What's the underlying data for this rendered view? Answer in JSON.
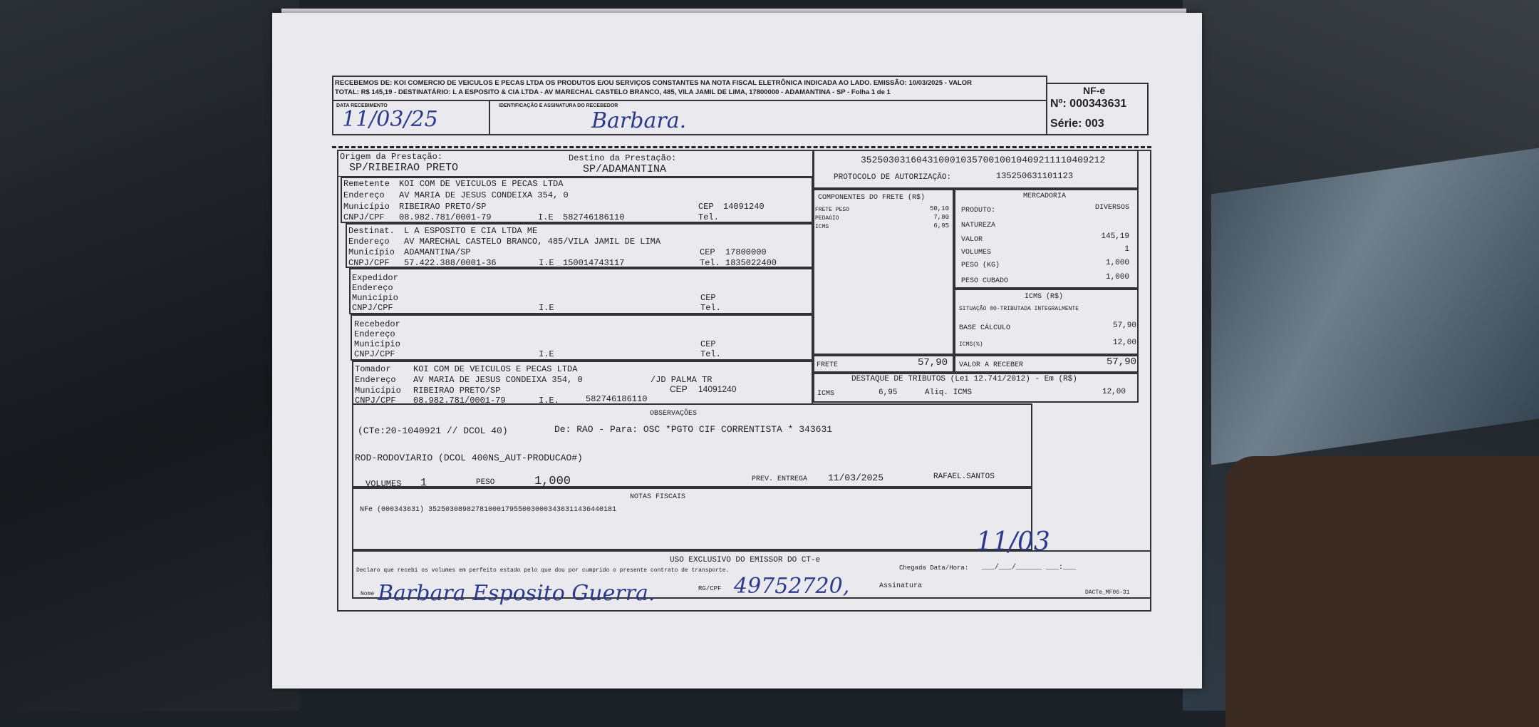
{
  "receipt": {
    "text_line1": "RECEBEMOS DE: KOI COMERCIO DE VEICULOS E PECAS LTDA OS PRODUTOS E/OU SERVIÇOS CONSTANTES NA NOTA FISCAL ELETRÔNICA INDICADA AO LADO. EMISSÃO: 10/03/2025 - VALOR",
    "text_line2": "TOTAL: R$ 145,19 - DESTINATÁRIO: L A  ESPOSITO & CIA LTDA - AV  MARECHAL CASTELO BRANCO, 485, VILA JAMIL DE LIMA, 17800000 - ADAMANTINA - SP - Folha 1 de 1",
    "data_label": "DATA RECEBIMENTO",
    "data_value": "11/03/25",
    "assinatura_label": "IDENTIFICAÇÃO E ASSINATURA DO RECEBEDOR",
    "assinatura_value": "Barbara.",
    "nfe_title": "NF-e",
    "nfe_number": "Nº: 000343631",
    "nfe_serie": "Série: 003"
  },
  "route": {
    "origem_label": "Origem da Prestação:",
    "origem": "SP/RIBEIRAO PRETO",
    "destino_label": "Destino da Prestação:",
    "destino": "SP/ADAMANTINA"
  },
  "chave": "35250303160431000103570010010409211110409212",
  "protocolo_label": "PROTOCOLO DE AUTORIZAÇÃO:",
  "protocolo": "135250631101123",
  "labels": {
    "endereco": "Endereço",
    "municipio": "Município",
    "cnpj": "CNPJ/CPF",
    "ie": "I.E",
    "ie2": "I.E.",
    "cep": "CEP",
    "tel": "Tel."
  },
  "remetente": {
    "label": "Remetente",
    "nome": "KOI COM DE VEICULOS E PECAS LTDA",
    "endereco": "AV MARIA DE JESUS CONDEIXA  354, 0",
    "municipio": "RIBEIRAO PRETO/SP",
    "cep": "14091240",
    "cnpj": "08.982.781/0001-79",
    "ie": "582746186110",
    "tel": ""
  },
  "destinatario": {
    "label": "Destinat.",
    "nome": "L A ESPOSITO E CIA LTDA ME",
    "endereco": "AV MARECHAL CASTELO BRANCO, 485/VILA JAMIL DE LIMA",
    "municipio": "ADAMANTINA/SP",
    "cep": "17800000",
    "cnpj": "57.422.388/0001-36",
    "ie": "150014743117",
    "tel": "1835022400"
  },
  "expedidor": {
    "label": "Expedidor"
  },
  "recebedor": {
    "label": "Recebedor"
  },
  "tomador": {
    "label": "Tomador",
    "nome": "KOI COM DE VEICULOS E PECAS LTDA",
    "endereco": "AV MARIA DE JESUS CONDEIXA  354, 0",
    "bairro": "/JD PALMA TR",
    "municipio": "RIBEIRAO PRETO/SP",
    "cep": "14091240",
    "cnpj": "08.982.781/0001-79",
    "ie": "582746186110"
  },
  "componentes": {
    "title": "COMPONENTES DO FRETE (R$)",
    "items": [
      {
        "label": "FRETE PESO",
        "value": "50,10"
      },
      {
        "label": "PEDAGIO",
        "value": "7,80"
      },
      {
        "label": "ICMS",
        "value": "6,95"
      }
    ],
    "frete_label": "FRETE",
    "frete_value": "57,90"
  },
  "mercadoria": {
    "title": "MERCADORIA",
    "produto_label": "PRODUTO:",
    "produto": "DIVERSOS",
    "natureza_label": "NATUREZA",
    "valor_label": "VALOR",
    "valor": "145,19",
    "volumes_label": "VOLUMES",
    "volumes": "1",
    "peso_label": "PESO (KG)",
    "peso": "1,000",
    "cubado_label": "PESO CUBADO",
    "cubado": "1,000"
  },
  "icms": {
    "title": "ICMS (R$)",
    "situacao": "SITUAÇÃO 00-TRIBUTADA INTEGRALMENTE",
    "base_label": "BASE CÁLCULO",
    "base": "57,90",
    "pct_label": "ICMS(%)",
    "pct": "12,00",
    "receber_label": "VALOR A RECEBER",
    "receber": "57,90"
  },
  "destaque": {
    "title": "DESTAQUE DE TRIBUTOS (Lei 12.741/2012) - Em (R$)",
    "icms_label": "ICMS",
    "icms": "6,95",
    "aliq_label": "Aliq. ICMS",
    "aliq": "12,00"
  },
  "observacoes": {
    "title": "OBSERVAÇÕES",
    "line1": "(CTe:20-1040921 // DCOL 40)",
    "line1b": "De: RAO - Para: OSC *PGTO CIF CORRENTISTA * 343631",
    "line2": "ROD-RODOVIARIO (DCOL 400NS_AUT-PRODUCAO#)",
    "volumes_label": "VOLUMES",
    "volumes": "1",
    "peso_label": "PESO",
    "peso": "1,000",
    "prev_label": "PREV. ENTREGA",
    "prev": "11/03/2025",
    "user": "RAFAEL.SANTOS"
  },
  "notas": {
    "title": "NOTAS FISCAIS",
    "line": "NFe (000343631) 35250308982781000179550030003436311436440181"
  },
  "uso": {
    "title": "USO EXCLUSIVO DO EMISSOR DO CT-e",
    "declaro": "Declaro que recebi os volumes em perfeito estado pelo que dou por cumprido o presente contrato de transporte.",
    "chegada": "Chegada Data/Hora:",
    "chegada_fill": "___/___/______   ___:___",
    "chegada_hand": "11/03",
    "nome_label": "Nome",
    "nome_hand": "Barbara Esposito Guerra.",
    "rg_label": "RG/CPF",
    "rg_hand": "49752720,",
    "assinatura": "Assinatura",
    "code": "DACTe_MF06-31"
  }
}
